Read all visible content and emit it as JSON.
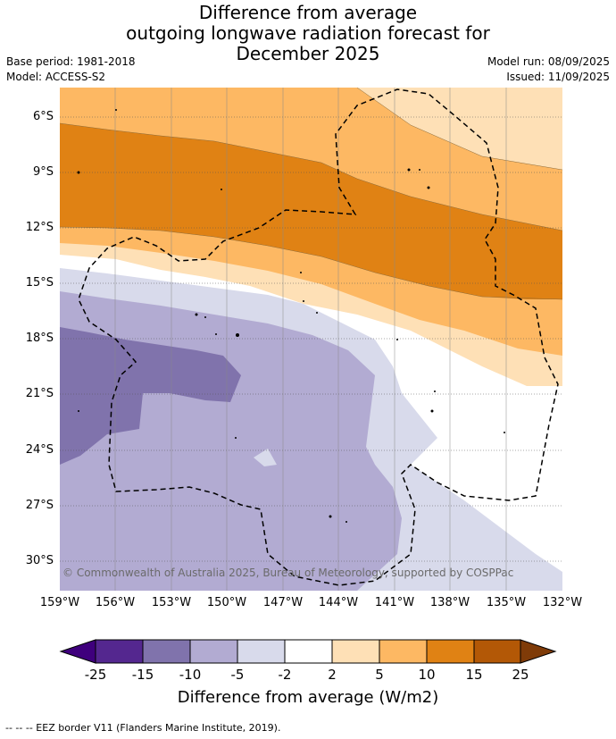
{
  "title": {
    "line1": "Difference from average",
    "line2": "outgoing longwave radiation forecast for",
    "line3": "December 2025"
  },
  "meta": {
    "base_period": "Base period: 1981-2018",
    "model": "Model: ACCESS-S2",
    "model_run": "Model run: 08/09/2025",
    "issued": "Issued: 11/09/2025"
  },
  "latitude_labels": [
    "6°S",
    "9°S",
    "12°S",
    "15°S",
    "18°S",
    "21°S",
    "24°S",
    "27°S",
    "30°S"
  ],
  "longitude_labels": [
    "159°W",
    "156°W",
    "153°W",
    "150°W",
    "147°W",
    "144°W",
    "141°W",
    "138°W",
    "135°W",
    "132°W"
  ],
  "copyright": "© Commonwealth of Australia 2025, Bureau of Meteorology, supported by COSPPac",
  "colorbar": {
    "title": "Difference from average (W/m2)",
    "ticks": [
      "-25",
      "-15",
      "-10",
      "-5",
      "-2",
      "2",
      "5",
      "10",
      "15",
      "25"
    ],
    "colors": [
      "#3f007d",
      "#54278f",
      "#8073ac",
      "#b2abd2",
      "#d8daeb",
      "#ffffff",
      "#fee0b6",
      "#fdb863",
      "#e08214",
      "#b35806",
      "#7f3b08"
    ]
  },
  "legend_footnote": "--  --  -- EEZ border V11 (Flanders Marine Institute, 2019)."
}
